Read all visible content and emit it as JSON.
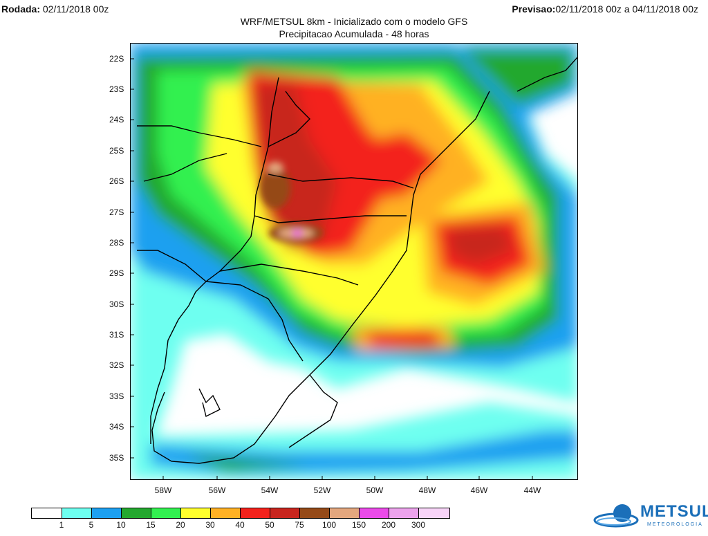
{
  "header": {
    "rodada_label": "Rodada:",
    "rodada_value": "02/11/2018 00z",
    "previsao_label": "Previsao:",
    "previsao_value": "02/11/2018 00z a 04/11/2018 00z"
  },
  "title": {
    "line1": "WRF/METSUL 8km - Inicializado com o modelo GFS",
    "line2": "Precipitacao Acumulada - 48 horas"
  },
  "map": {
    "lat_labels": [
      "22S",
      "23S",
      "24S",
      "25S",
      "26S",
      "27S",
      "28S",
      "29S",
      "30S",
      "31S",
      "32S",
      "33S",
      "34S",
      "35S"
    ],
    "lon_labels": [
      "58W",
      "56W",
      "54W",
      "52W",
      "50W",
      "48W",
      "46W",
      "44W"
    ],
    "land_color": "#ffffff",
    "border_color": "#000000"
  },
  "legend": {
    "labels": [
      "1",
      "5",
      "10",
      "15",
      "20",
      "30",
      "40",
      "50",
      "75",
      "100",
      "150",
      "200",
      "300"
    ],
    "colors": [
      "#ffffff",
      "#6efff0",
      "#1da0f0",
      "#24a82f",
      "#32f050",
      "#ffff2d",
      "#ffb124",
      "#f3221c",
      "#c8251e",
      "#954a18",
      "#e4a77e",
      "#eb4be9",
      "#eda3ed",
      "#f8d4f8"
    ]
  },
  "logo": {
    "name": "METSUL",
    "sub": "METEOROLOGIA"
  }
}
